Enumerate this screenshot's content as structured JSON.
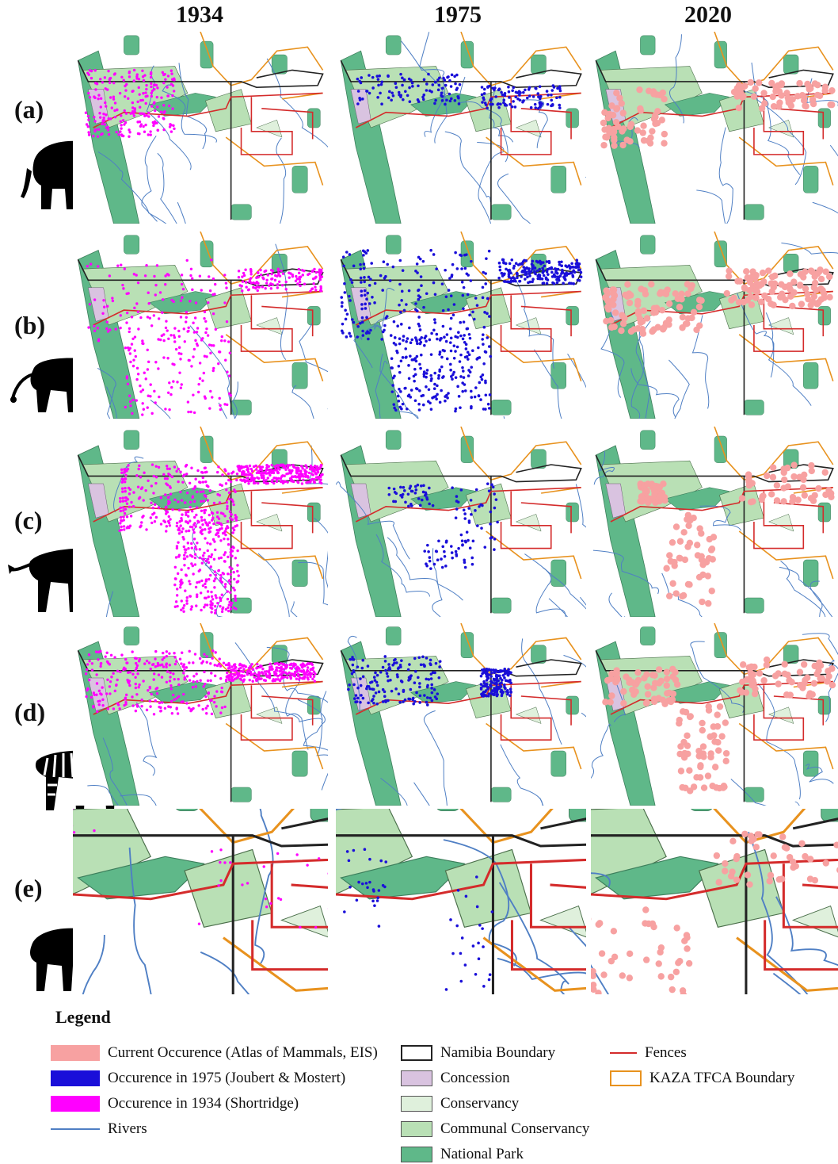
{
  "columns": [
    "1934",
    "1975",
    "2020"
  ],
  "rows": [
    {
      "label": "(a)",
      "animal_icon": "elephant-silhouette-icon"
    },
    {
      "label": "(b)",
      "animal_icon": "lion-silhouette-icon"
    },
    {
      "label": "(c)",
      "animal_icon": "wildebeest-silhouette-icon"
    },
    {
      "label": "(d)",
      "animal_icon": "zebra-silhouette-icon"
    },
    {
      "label": "(e)",
      "animal_icon": "buffalo-silhouette-icon"
    }
  ],
  "legend": {
    "title": "Legend",
    "items": [
      {
        "label": "Current Occurence (Atlas of Mammals, EIS)",
        "color": "#f7a1a1",
        "kind": "fill"
      },
      {
        "label": "Occurence in 1975 (Joubert & Mostert)",
        "color": "#1a0fd9",
        "kind": "fill"
      },
      {
        "label": "Occurence in 1934 (Shortridge)",
        "color": "#ff00ff",
        "kind": "fill"
      },
      {
        "label": "Rivers",
        "color": "#4f7fc4",
        "kind": "line"
      },
      {
        "label": "Namibia Boundary",
        "color": "#222222",
        "kind": "outline"
      },
      {
        "label": "Concession",
        "color": "#d9c3e0",
        "kind": "fill"
      },
      {
        "label": "Conservancy",
        "color": "#dff0dc",
        "kind": "fill"
      },
      {
        "label": "Communal Conservancy",
        "color": "#b9e0b5",
        "kind": "fill"
      },
      {
        "label": "National Park",
        "color": "#5fb889",
        "kind": "fill"
      },
      {
        "label": "Fences",
        "color": "#d42b2b",
        "kind": "line"
      },
      {
        "label": "KAZA TFCA Boundary",
        "color": "#e8921e",
        "kind": "outline"
      }
    ]
  },
  "colors": {
    "national_park": "#5fb889",
    "communal_conservancy": "#b9e0b5",
    "conservancy": "#dff0dc",
    "concession": "#d9c3e0",
    "river": "#4f7fc4",
    "fence": "#d42b2b",
    "kaza": "#e8921e",
    "boundary": "#222222",
    "occ_1934": "#ff00ff",
    "occ_1975": "#1a0fd9",
    "occ_2020": "#f7a1a1"
  }
}
